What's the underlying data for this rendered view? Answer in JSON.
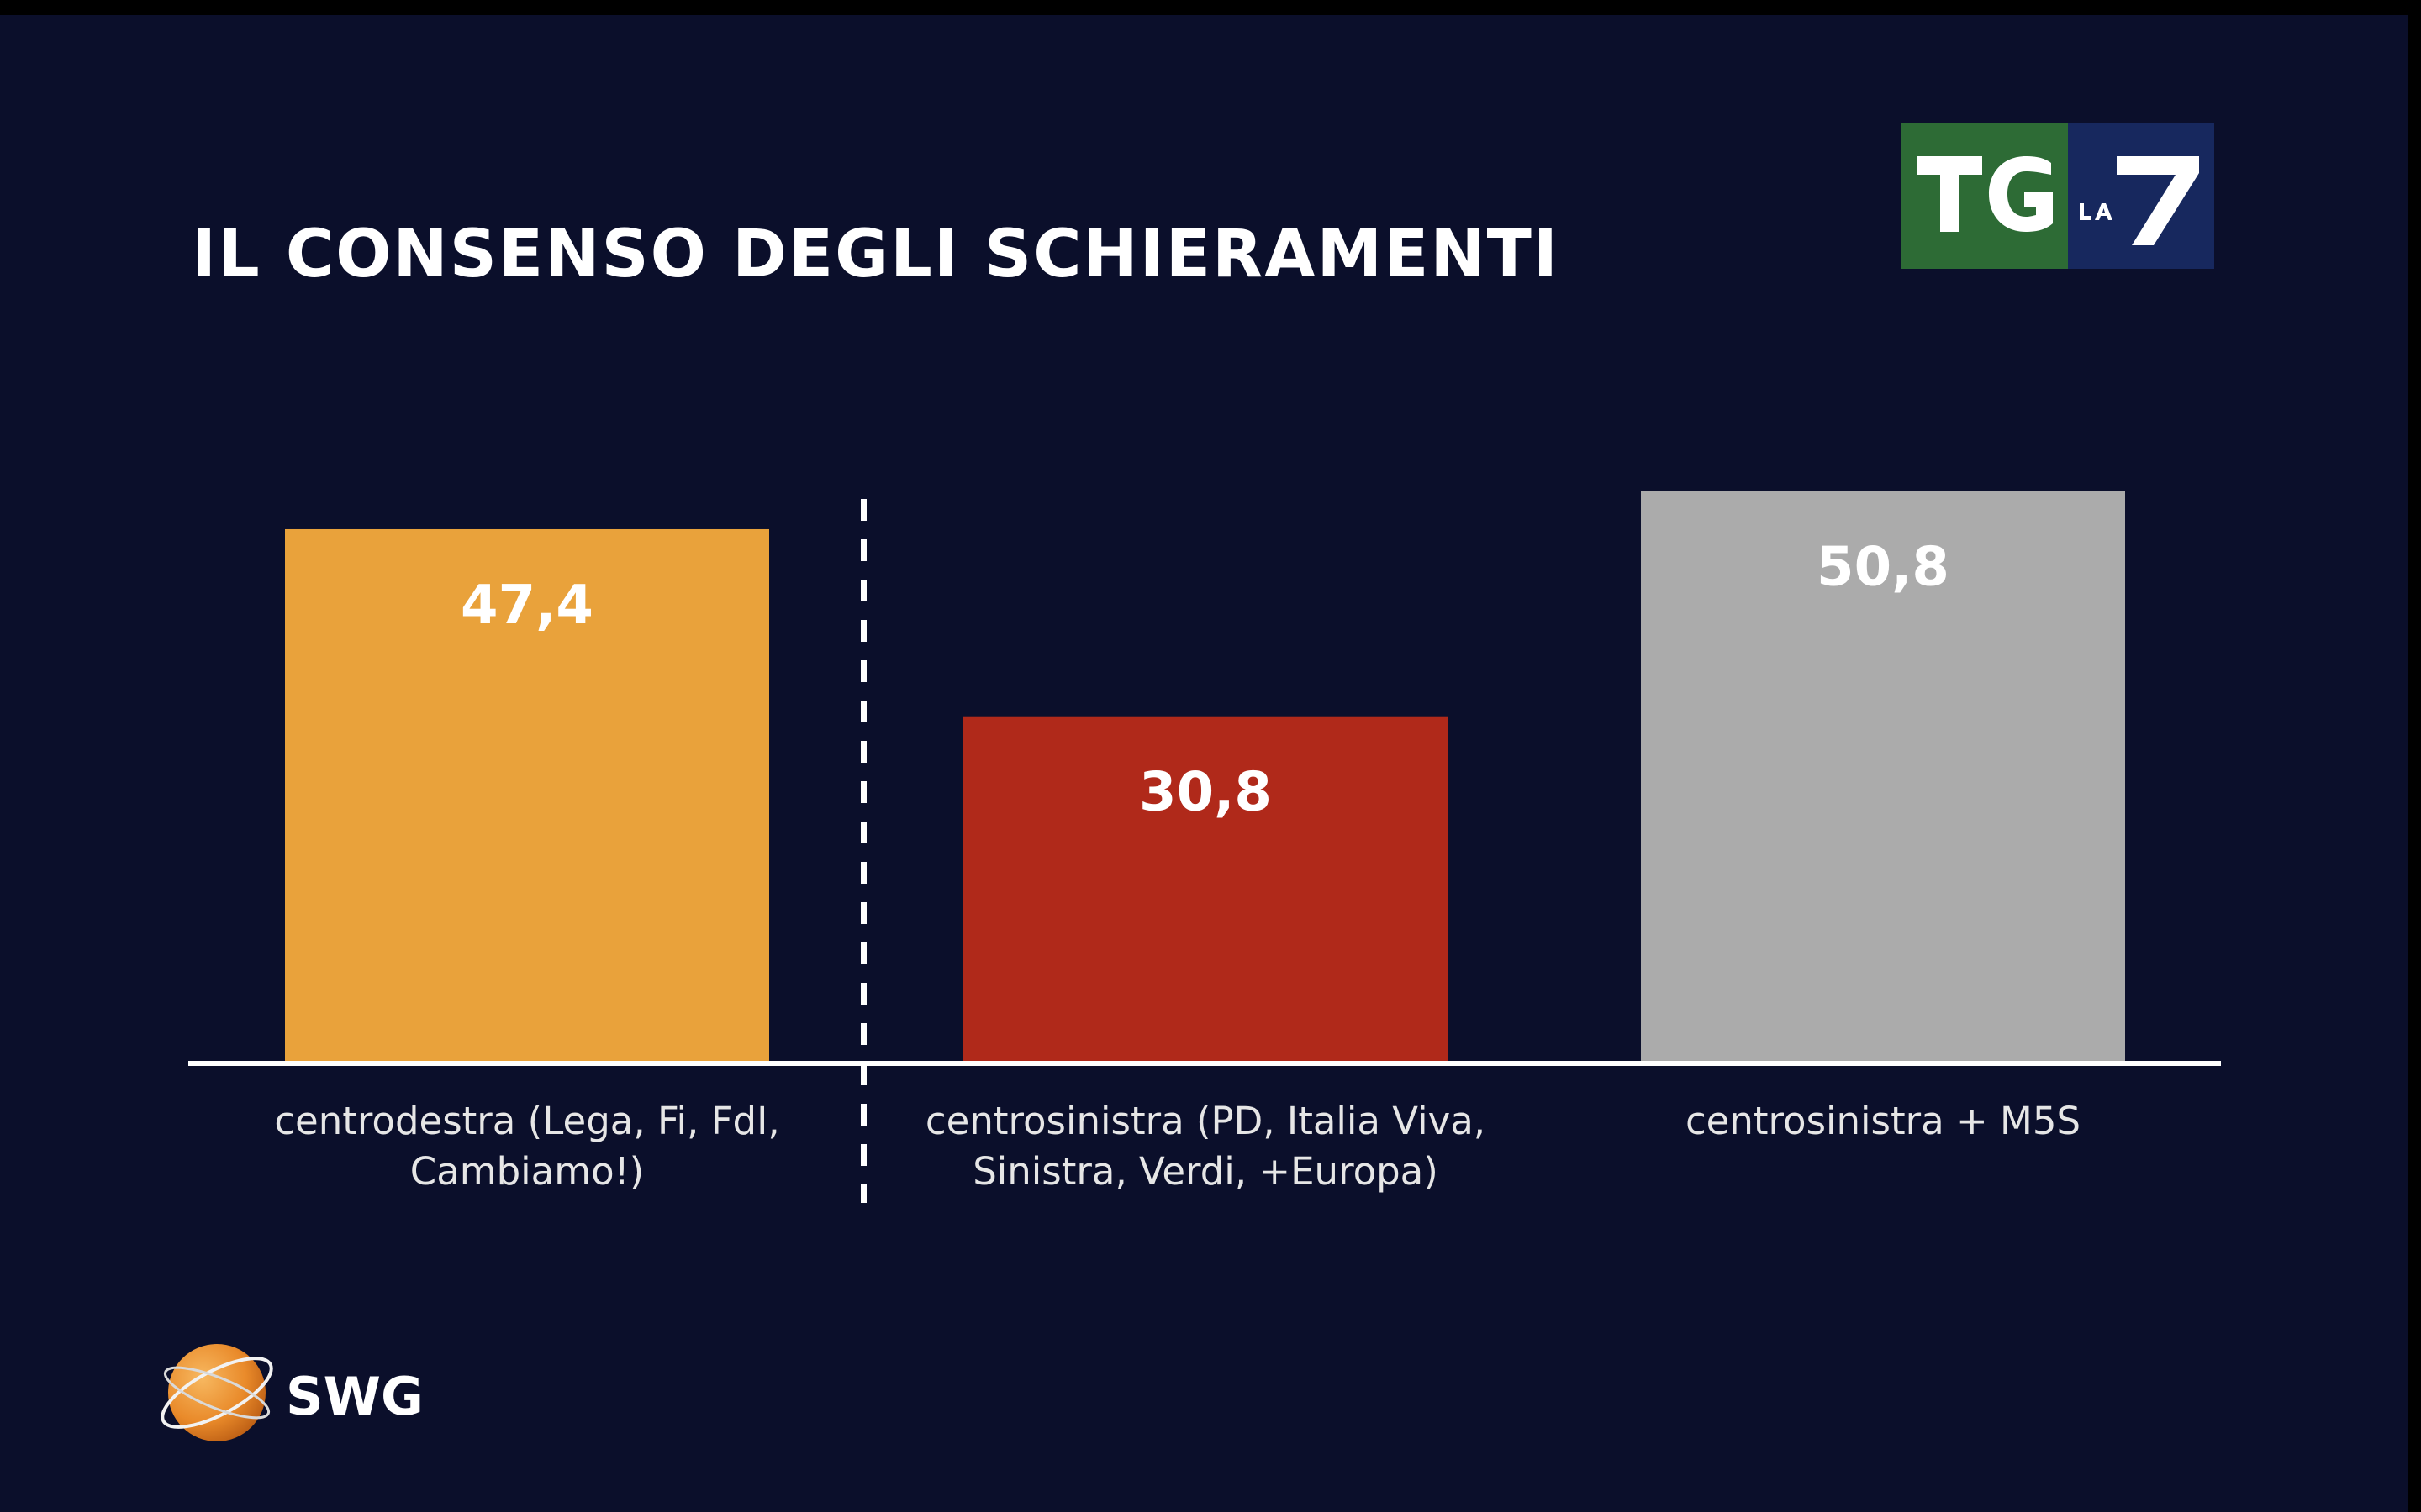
{
  "colors": {
    "background": "#0b0f2b",
    "text": "#ffffff",
    "label": "#e6e6e6",
    "axis": "#ffffff",
    "divider": "#ffffff"
  },
  "logos": {
    "broadcaster": {
      "icon": "tg-la7-logo",
      "text": "TG LA7"
    },
    "pollster": {
      "icon": "swg-globe-icon",
      "text": "SWG"
    }
  },
  "chart_data": {
    "type": "bar",
    "title": "IL CONSENSO DEGLI SCHIERAMENTI",
    "xlabel": "",
    "ylabel": "",
    "ylim": [
      0,
      55
    ],
    "grid": false,
    "legend": "none",
    "divider_after_category": 0,
    "categories": [
      [
        "centrodestra (Lega, Fi, FdI,",
        "Cambiamo!)"
      ],
      [
        "centrosinistra (PD, Italia Viva,",
        "Sinistra, Verdi, +Europa)"
      ],
      [
        "centrosinistra + M5S"
      ]
    ],
    "values": [
      47.4,
      30.8,
      50.8
    ],
    "value_labels": [
      "47,4",
      "30,8",
      "50,8"
    ],
    "bar_colors": [
      "#e9a23b",
      "#b0291a",
      "#ababab"
    ]
  }
}
